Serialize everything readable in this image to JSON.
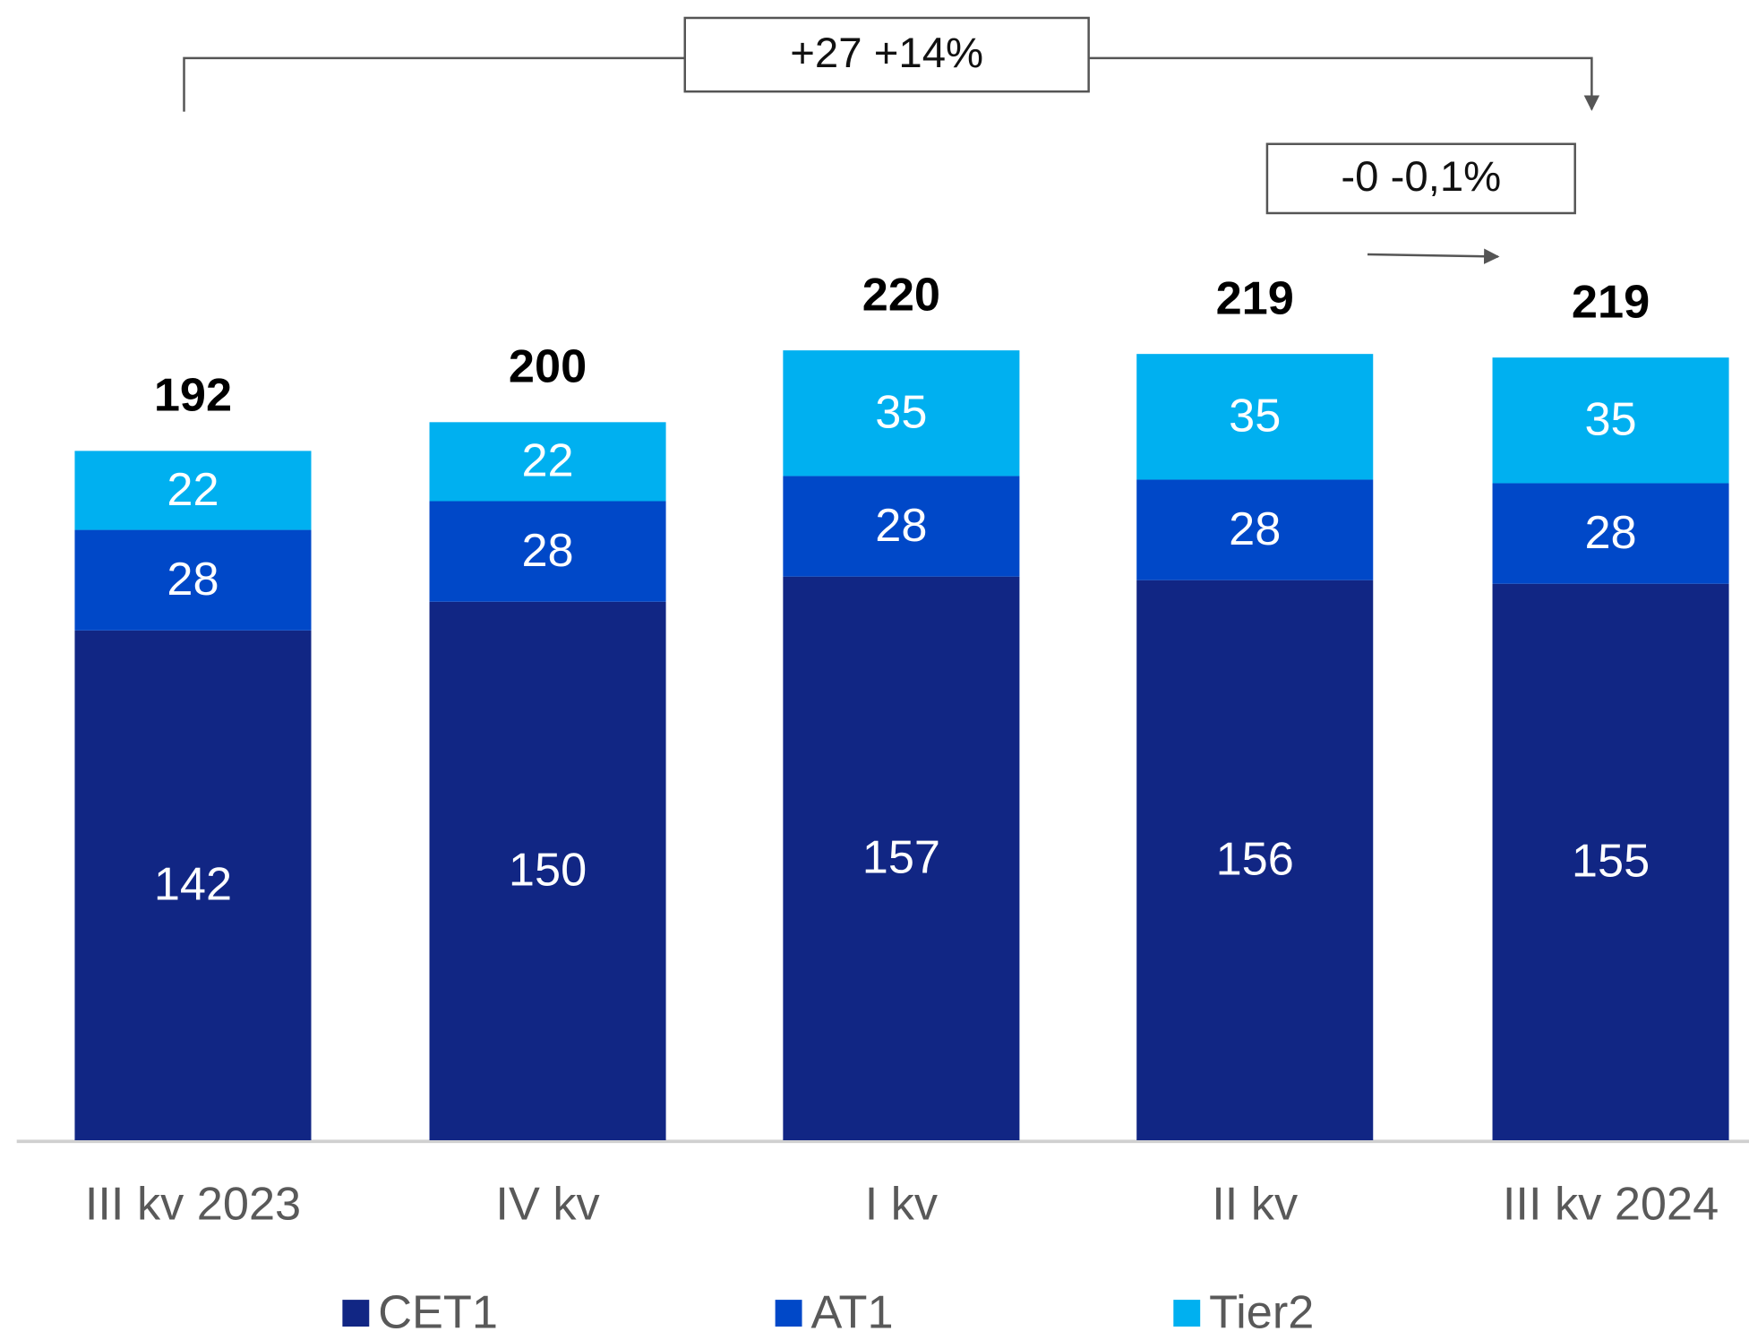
{
  "chart_data": {
    "type": "stacked_bar",
    "categories": [
      "III kv 2023",
      "IV kv",
      "I kv",
      "II kv",
      "III kv 2024"
    ],
    "series": [
      {
        "name": "CET1",
        "color": "#112684",
        "values": [
          142,
          150,
          157,
          156,
          155
        ]
      },
      {
        "name": "AT1",
        "color": "#0048c8",
        "values": [
          28,
          28,
          28,
          28,
          28
        ]
      },
      {
        "name": "Tier2",
        "color": "#00b0f0",
        "values": [
          22,
          22,
          35,
          35,
          35
        ]
      }
    ],
    "totals": [
      192,
      200,
      220,
      219,
      219
    ],
    "ylim": [
      0,
      220
    ],
    "annotations": [
      "+27 +14%",
      "-0 -0,1%"
    ]
  }
}
